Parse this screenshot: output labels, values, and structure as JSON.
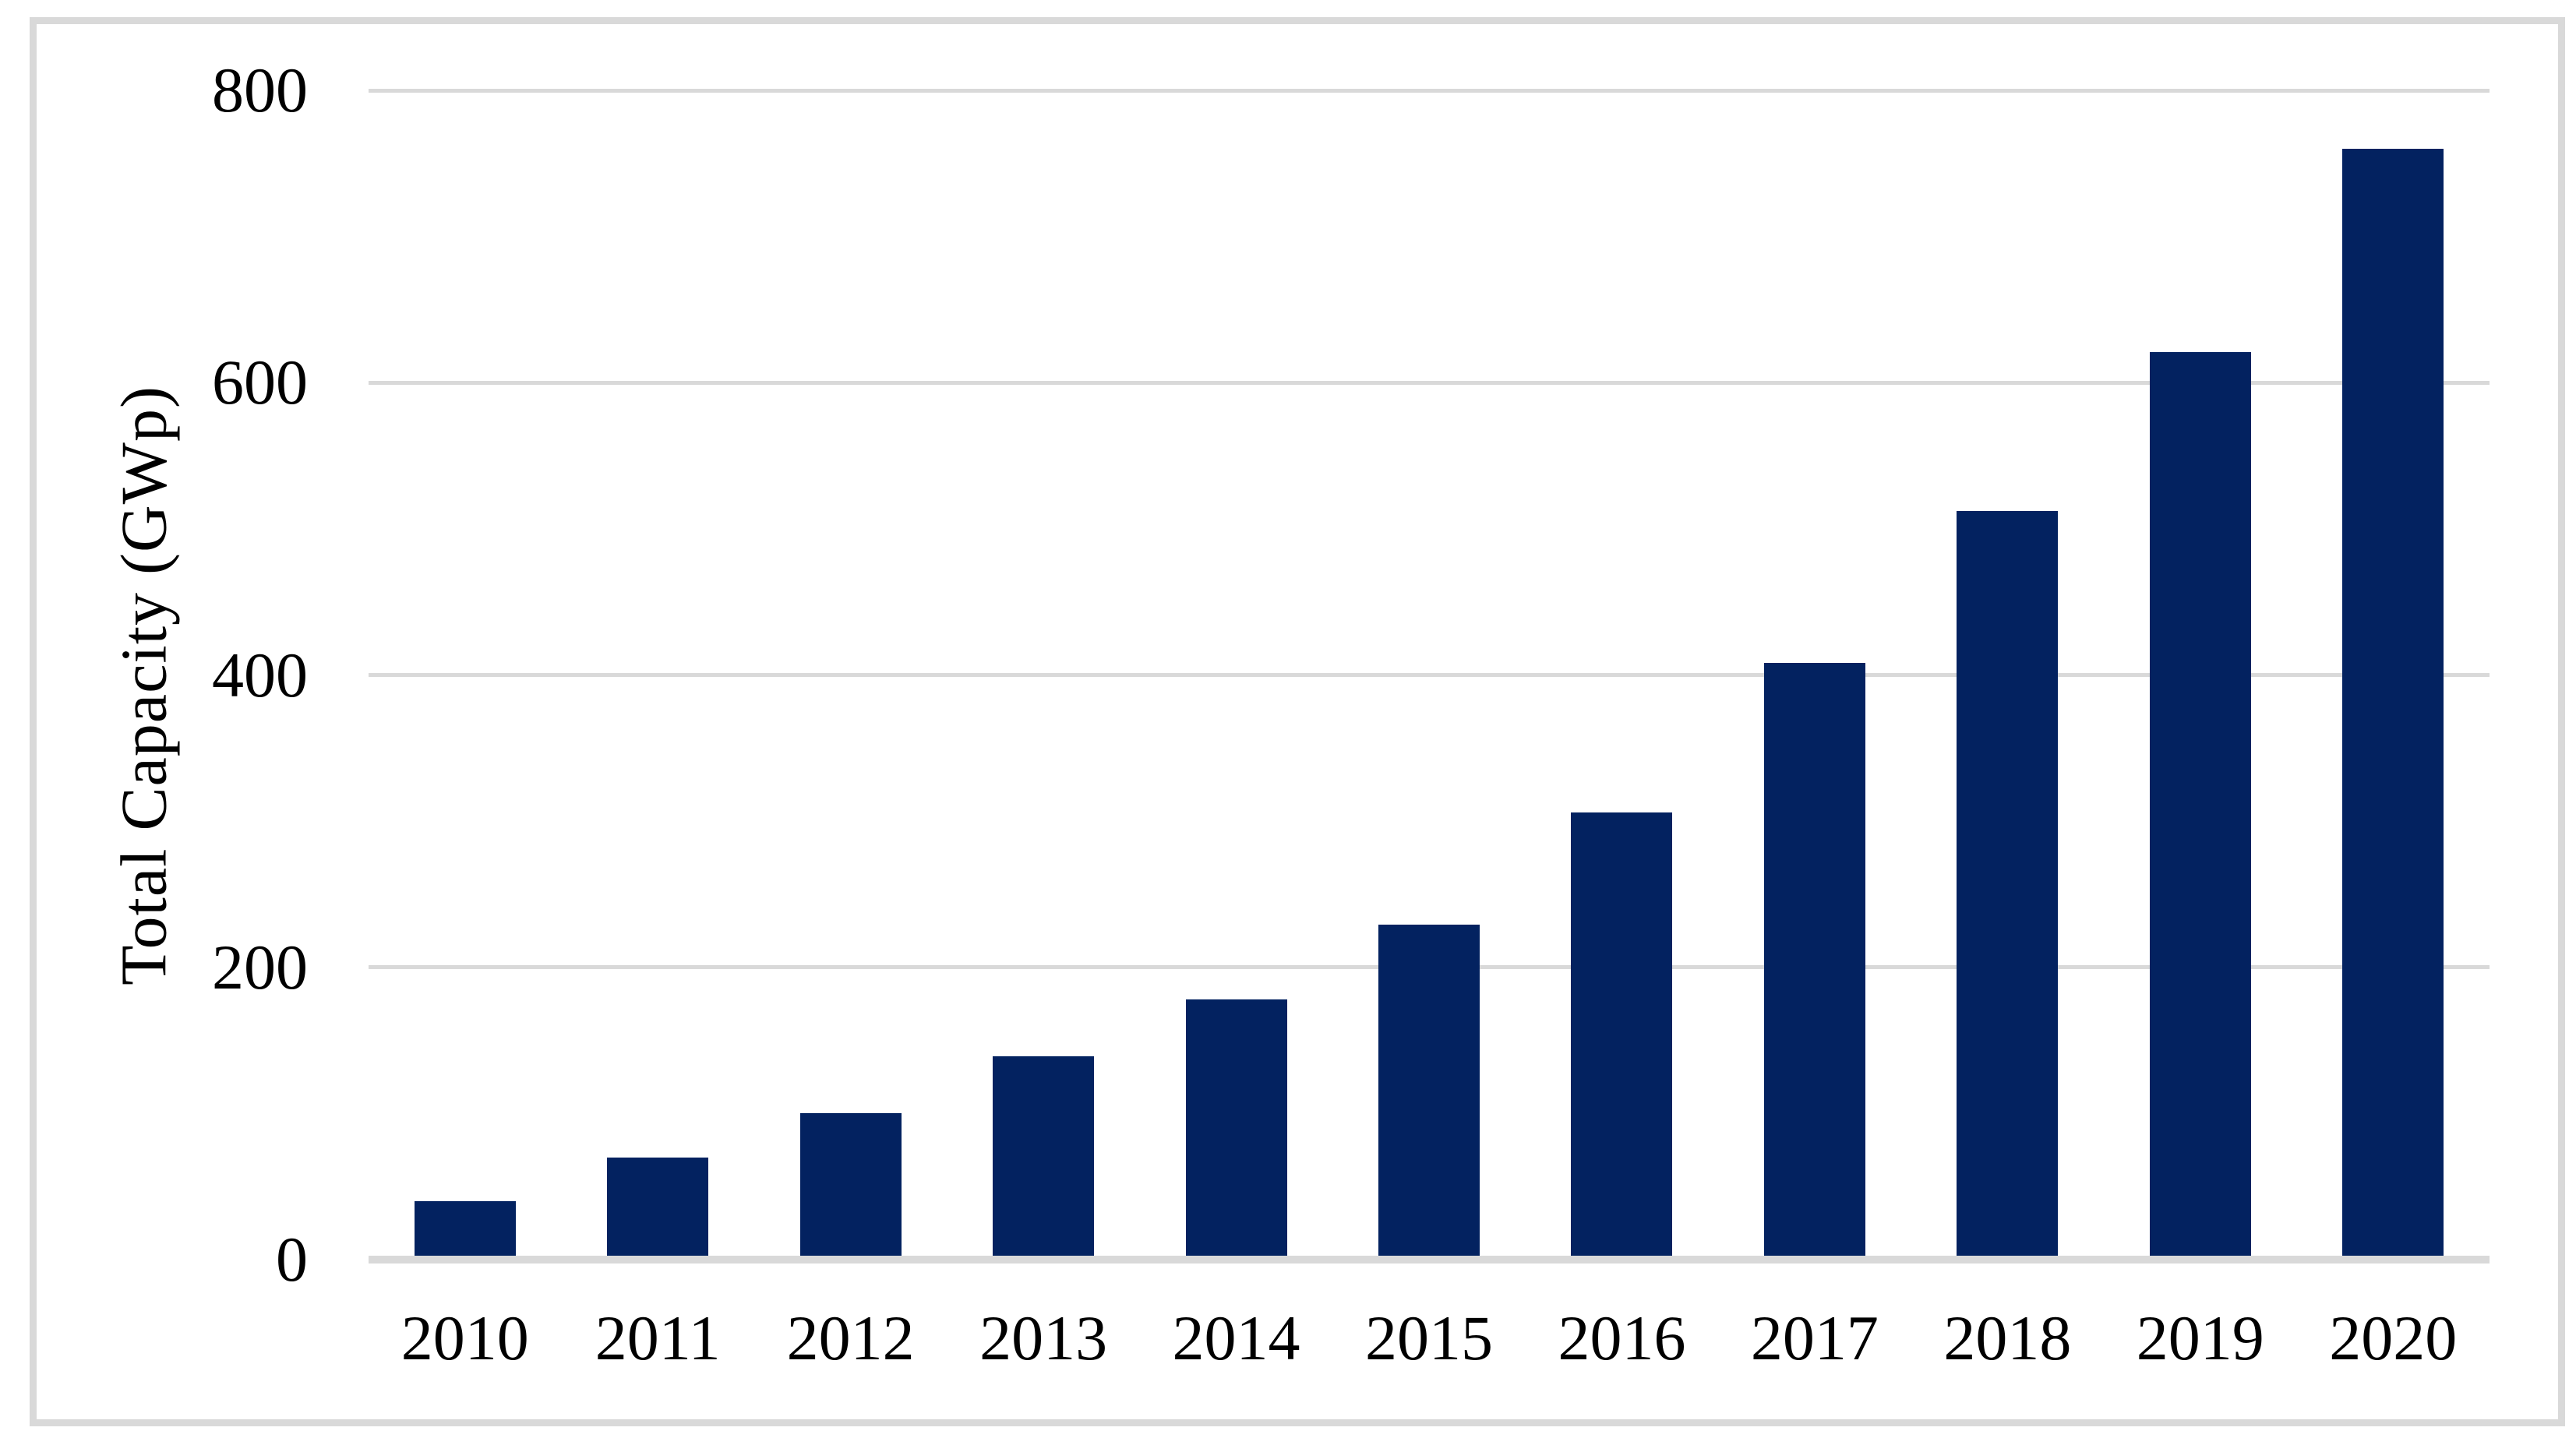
{
  "chart_data": {
    "type": "bar",
    "title": "",
    "xlabel": "",
    "ylabel": "Total Capacity (GWp)",
    "categories": [
      "2010",
      "2011",
      "2012",
      "2013",
      "2014",
      "2015",
      "2016",
      "2017",
      "2018",
      "2019",
      "2020"
    ],
    "values": [
      40,
      70,
      100,
      139,
      178,
      229,
      306,
      408,
      512,
      621,
      760
    ],
    "ylim": [
      0,
      800
    ],
    "yticks": [
      0,
      200,
      400,
      600,
      800
    ],
    "grid": "horizontal gridlines at each y tick",
    "legend": "none",
    "colors": {
      "bar": "#032260",
      "gridline": "#d9d9d9",
      "axis_line": "#d9d9d9",
      "frame_border": "#d9d9d9",
      "text": "#000000",
      "background": "#ffffff"
    }
  }
}
